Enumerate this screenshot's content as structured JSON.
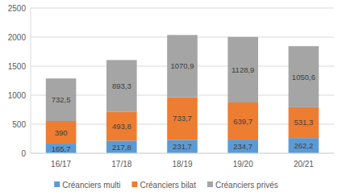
{
  "chart_data": {
    "type": "bar",
    "stacked": true,
    "data_labels": true,
    "grid": true,
    "legend": "bottom",
    "categories": [
      "16/17",
      "17/18",
      "18/19",
      "19/20",
      "20/21"
    ],
    "ylim": [
      0,
      2500
    ],
    "yticks": [
      0,
      500,
      1000,
      1500,
      2000,
      2500
    ],
    "series": [
      {
        "name": "Créanciers multi",
        "color": "#5b9bd5",
        "values": [
          165.7,
          217.8,
          231.7,
          234.7,
          262.2
        ],
        "value_labels": [
          "165,7",
          "217,8",
          "231,7",
          "234,7",
          "262,2"
        ]
      },
      {
        "name": "Créanciers bilat",
        "color": "#ed7d31",
        "values": [
          390,
          493.8,
          733.7,
          639.7,
          531.3
        ],
        "value_labels": [
          "390",
          "493,8",
          "733,7",
          "639,7",
          "531,3"
        ]
      },
      {
        "name": "Créanciers privés",
        "color": "#a5a5a5",
        "values": [
          732.5,
          893.3,
          1070.9,
          1128.9,
          1050.6
        ],
        "value_labels": [
          "732,5",
          "893,3",
          "1070,9",
          "1128,9",
          "1050,6"
        ]
      }
    ]
  }
}
